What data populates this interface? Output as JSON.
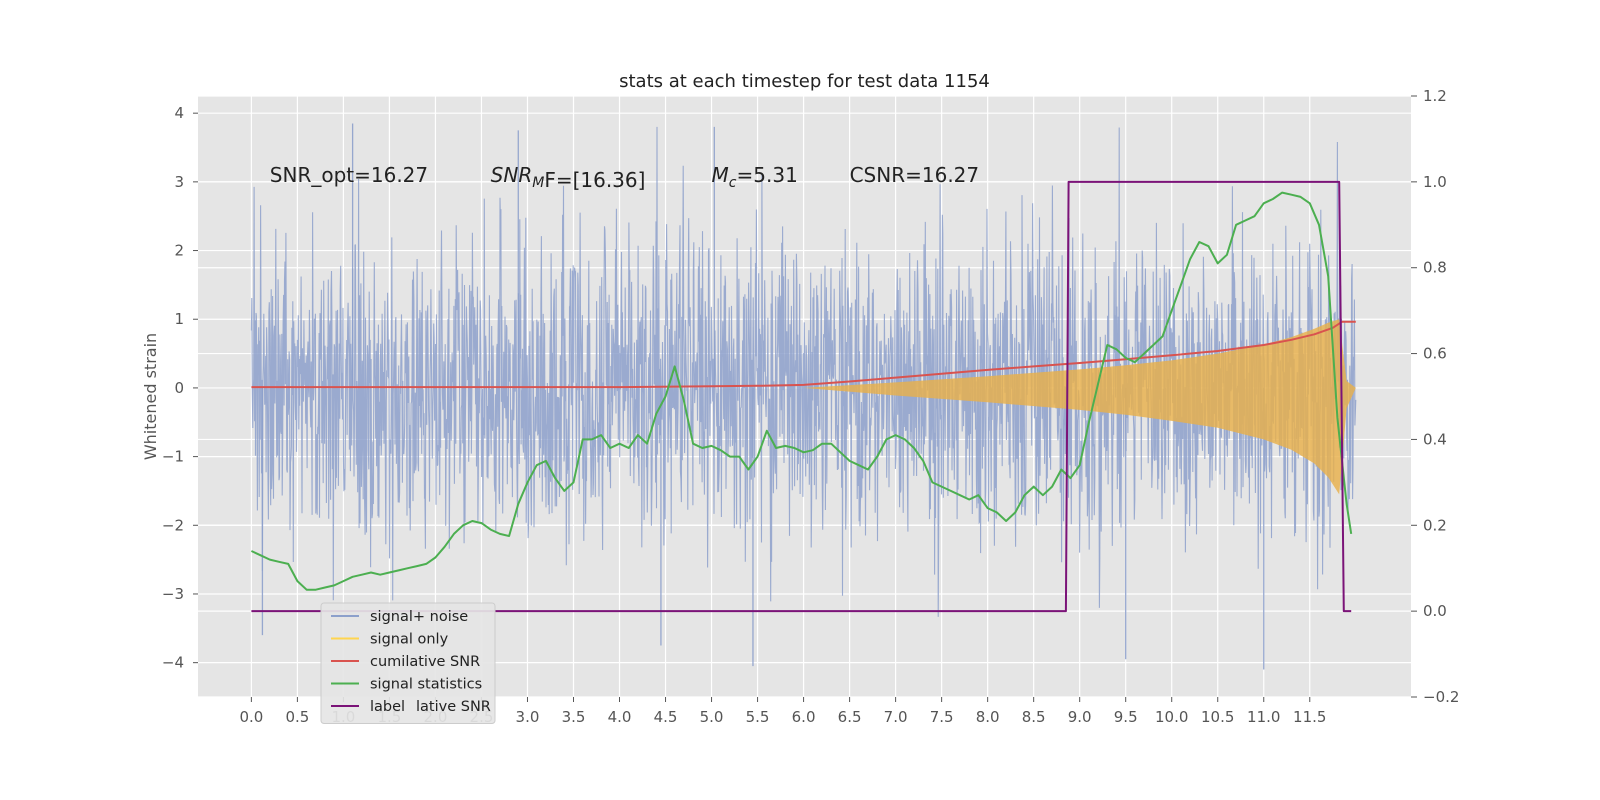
{
  "chart_data": {
    "type": "line",
    "title": "stats at each timestep for test data 1154",
    "ylabel": "Whitened strain",
    "xlabel": "",
    "xlim": [
      -0.58,
      12.6
    ],
    "ylim": [
      -4.5,
      4.25
    ],
    "y2lim": [
      -0.2,
      1.2
    ],
    "grid": true,
    "background": "#e5e5e5",
    "x_ticks": [
      "0.0",
      "0.5",
      "1.0",
      "1.5",
      "2.0",
      "2.5",
      "3.0",
      "3.5",
      "4.0",
      "4.5",
      "5.0",
      "5.5",
      "6.0",
      "6.5",
      "7.0",
      "7.5",
      "8.0",
      "8.5",
      "9.0",
      "9.5",
      "10.0",
      "10.5",
      "11.0",
      "11.5"
    ],
    "y_ticks": [
      "4",
      "3",
      "2",
      "1",
      "0",
      "−1",
      "−2",
      "−3",
      "−4"
    ],
    "y2_ticks": [
      "1.2",
      "1.0",
      "0.8",
      "0.6",
      "0.4",
      "0.2",
      "0.0",
      "−0.2"
    ],
    "annotations": {
      "snr_opt": {
        "text": "SNR_opt=16.27",
        "x": 0.2,
        "y": 3.0
      },
      "snr_mf": {
        "prefix": "SNR",
        "subscript": "M",
        "suffix": "F=[16.36]",
        "x": 2.6,
        "y": 3.0
      },
      "mc": {
        "prefix": "M",
        "subscript": "c",
        "suffix": "=5.31",
        "x": 5.0,
        "y": 3.0
      },
      "csnr": {
        "text": "CSNR=16.27",
        "x": 6.5,
        "y": 3.0
      }
    },
    "legend": {
      "placement": "lower-left",
      "overflow_text": "lative SNR",
      "entries": [
        {
          "label": "signal+ noise",
          "color": "#8da0cb"
        },
        {
          "label": "signal only",
          "color": "#ffd54f"
        },
        {
          "label": "cumilative SNR",
          "color": "#d9534f"
        },
        {
          "label": "signal statistics",
          "color": "#4caf50"
        },
        {
          "label": "label",
          "color": "#7b1378"
        }
      ]
    },
    "series": [
      {
        "name": "signal+ noise",
        "axis": "left",
        "color": "#8da0cb",
        "x_start": 0.0,
        "x_end": 12.0,
        "envelope_max": 3.8,
        "envelope_min": -4.1,
        "typical_amplitude": 1.75,
        "spike_highlights": [
          {
            "x": 1.1,
            "y": 3.85
          },
          {
            "x": 2.9,
            "y": 3.75
          },
          {
            "x": 5.03,
            "y": 3.8
          },
          {
            "x": 5.45,
            "y": -4.05
          },
          {
            "x": 11.0,
            "y": -4.1
          },
          {
            "x": 9.5,
            "y": -3.95
          },
          {
            "x": 4.45,
            "y": -3.75
          },
          {
            "x": 0.12,
            "y": -3.6
          }
        ]
      },
      {
        "name": "signal only",
        "axis": "left",
        "color": "#e8b04a",
        "x": [
          6.0,
          7.0,
          8.0,
          9.0,
          9.5,
          10.0,
          10.5,
          11.0,
          11.3,
          11.55,
          11.7,
          11.82,
          11.9,
          12.0
        ],
        "upper": [
          0.0,
          0.08,
          0.17,
          0.27,
          0.33,
          0.4,
          0.5,
          0.63,
          0.74,
          0.86,
          0.95,
          1.0,
          0.1,
          0.0
        ],
        "lower": [
          0.0,
          -0.11,
          -0.21,
          -0.32,
          -0.39,
          -0.48,
          -0.58,
          -0.75,
          -0.9,
          -1.1,
          -1.3,
          -1.55,
          -0.3,
          0.0
        ]
      },
      {
        "name": "cumilative SNR",
        "axis": "right",
        "color": "#d9534f",
        "x": [
          0.0,
          1.0,
          2.0,
          3.0,
          4.0,
          5.0,
          5.5,
          6.0,
          6.5,
          7.0,
          7.5,
          8.0,
          8.5,
          9.0,
          9.5,
          10.0,
          10.5,
          11.0,
          11.3,
          11.55,
          11.75,
          11.85,
          12.0
        ],
        "y": [
          0.522,
          0.522,
          0.522,
          0.522,
          0.522,
          0.524,
          0.525,
          0.527,
          0.535,
          0.544,
          0.553,
          0.562,
          0.57,
          0.578,
          0.587,
          0.596,
          0.606,
          0.62,
          0.632,
          0.645,
          0.66,
          0.674,
          0.674
        ]
      },
      {
        "name": "signal statistics",
        "axis": "right",
        "color": "#4caf50",
        "x": [
          0.0,
          0.1,
          0.2,
          0.3,
          0.4,
          0.5,
          0.6,
          0.7,
          0.8,
          0.9,
          1.0,
          1.1,
          1.2,
          1.3,
          1.4,
          1.5,
          1.6,
          1.7,
          1.8,
          1.9,
          2.0,
          2.1,
          2.2,
          2.3,
          2.4,
          2.5,
          2.6,
          2.7,
          2.8,
          2.9,
          3.0,
          3.1,
          3.2,
          3.3,
          3.4,
          3.5,
          3.6,
          3.7,
          3.8,
          3.9,
          4.0,
          4.1,
          4.2,
          4.3,
          4.4,
          4.5,
          4.6,
          4.7,
          4.8,
          4.9,
          5.0,
          5.1,
          5.2,
          5.3,
          5.4,
          5.5,
          5.6,
          5.7,
          5.8,
          5.9,
          6.0,
          6.1,
          6.2,
          6.3,
          6.4,
          6.5,
          6.6,
          6.7,
          6.8,
          6.9,
          7.0,
          7.1,
          7.2,
          7.3,
          7.4,
          7.5,
          7.6,
          7.7,
          7.8,
          7.9,
          8.0,
          8.1,
          8.2,
          8.3,
          8.4,
          8.5,
          8.6,
          8.7,
          8.8,
          8.9,
          9.0,
          9.1,
          9.2,
          9.3,
          9.4,
          9.5,
          9.6,
          9.7,
          9.8,
          9.9,
          10.0,
          10.1,
          10.2,
          10.3,
          10.4,
          10.5,
          10.6,
          10.7,
          10.8,
          10.9,
          11.0,
          11.1,
          11.2,
          11.3,
          11.4,
          11.5,
          11.6,
          11.7,
          11.8,
          11.9,
          11.95
        ],
        "y": [
          0.14,
          0.13,
          0.12,
          0.115,
          0.11,
          0.07,
          0.05,
          0.05,
          0.055,
          0.06,
          0.07,
          0.08,
          0.085,
          0.09,
          0.085,
          0.09,
          0.095,
          0.1,
          0.105,
          0.11,
          0.125,
          0.15,
          0.18,
          0.2,
          0.21,
          0.205,
          0.19,
          0.18,
          0.175,
          0.25,
          0.3,
          0.34,
          0.35,
          0.31,
          0.28,
          0.3,
          0.4,
          0.4,
          0.41,
          0.38,
          0.39,
          0.38,
          0.41,
          0.39,
          0.46,
          0.5,
          0.57,
          0.49,
          0.39,
          0.38,
          0.385,
          0.375,
          0.36,
          0.36,
          0.33,
          0.36,
          0.42,
          0.38,
          0.385,
          0.38,
          0.37,
          0.375,
          0.39,
          0.39,
          0.37,
          0.35,
          0.34,
          0.33,
          0.36,
          0.4,
          0.41,
          0.4,
          0.38,
          0.35,
          0.3,
          0.29,
          0.28,
          0.27,
          0.26,
          0.27,
          0.24,
          0.23,
          0.21,
          0.23,
          0.27,
          0.29,
          0.27,
          0.29,
          0.33,
          0.31,
          0.34,
          0.44,
          0.53,
          0.62,
          0.61,
          0.59,
          0.58,
          0.6,
          0.62,
          0.64,
          0.7,
          0.76,
          0.82,
          0.86,
          0.85,
          0.81,
          0.83,
          0.9,
          0.91,
          0.92,
          0.95,
          0.96,
          0.975,
          0.97,
          0.965,
          0.95,
          0.9,
          0.78,
          0.45,
          0.25,
          0.18
        ]
      },
      {
        "name": "label",
        "axis": "right",
        "color": "#7b1378",
        "x": [
          0.0,
          8.85,
          8.88,
          11.82,
          11.87,
          11.95
        ],
        "y": [
          0.0,
          0.0,
          1.0,
          1.0,
          0.0,
          0.0
        ]
      }
    ]
  }
}
